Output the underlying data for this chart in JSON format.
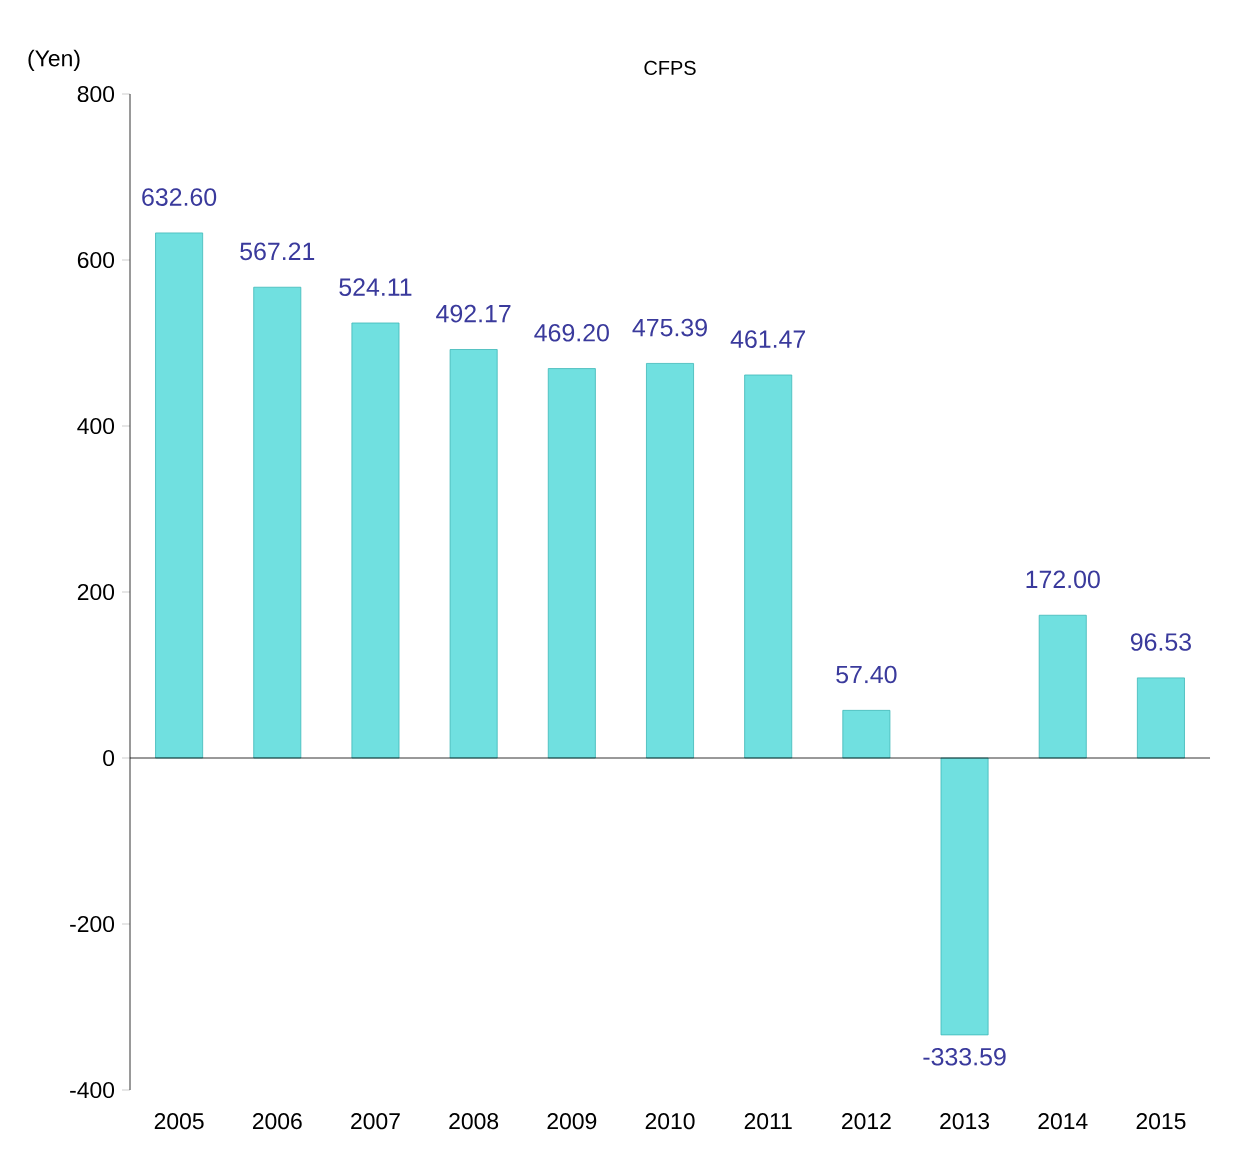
{
  "chart_data": {
    "type": "bar",
    "title": "CFPS",
    "ylabel": "(Yen)",
    "categories": [
      "2005",
      "2006",
      "2007",
      "2008",
      "2009",
      "2010",
      "2011",
      "2012",
      "2013",
      "2014",
      "2015"
    ],
    "values": [
      632.6,
      567.21,
      524.11,
      492.17,
      469.2,
      475.39,
      461.47,
      57.4,
      -333.59,
      172.0,
      96.53
    ],
    "value_labels": [
      "632.60",
      "567.21",
      "524.11",
      "492.17",
      "469.20",
      "475.39",
      "461.47",
      "57.40",
      "-333.59",
      "172.00",
      "96.53"
    ],
    "color": "#70e0e0",
    "ylim": [
      -400,
      800
    ],
    "yticks": [
      -400,
      -200,
      0,
      200,
      400,
      600,
      800
    ]
  }
}
